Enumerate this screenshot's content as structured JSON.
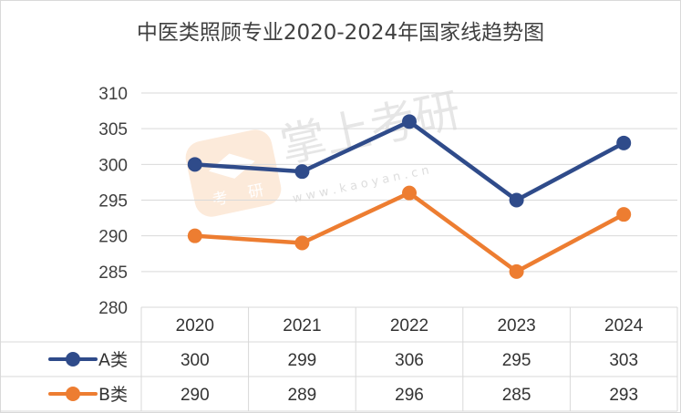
{
  "chart_data": {
    "type": "line",
    "title": "中医类照顾专业2020-2024年国家线趋势图",
    "categories": [
      "2020",
      "2021",
      "2022",
      "2023",
      "2024"
    ],
    "series": [
      {
        "name": "A类",
        "values": [
          300,
          299,
          306,
          295,
          303
        ],
        "color": "#2f4b8a"
      },
      {
        "name": "B类",
        "values": [
          290,
          289,
          296,
          285,
          293
        ],
        "color": "#ed7d31"
      }
    ],
    "ylim": [
      280,
      310
    ],
    "yticks": [
      280,
      285,
      290,
      295,
      300,
      305,
      310
    ],
    "grid": true,
    "legend": "data-table",
    "watermark": {
      "brand": "掌上考研",
      "badge_chars": [
        "考",
        "研"
      ],
      "url": "w w w . k a o y a n . c n"
    }
  }
}
